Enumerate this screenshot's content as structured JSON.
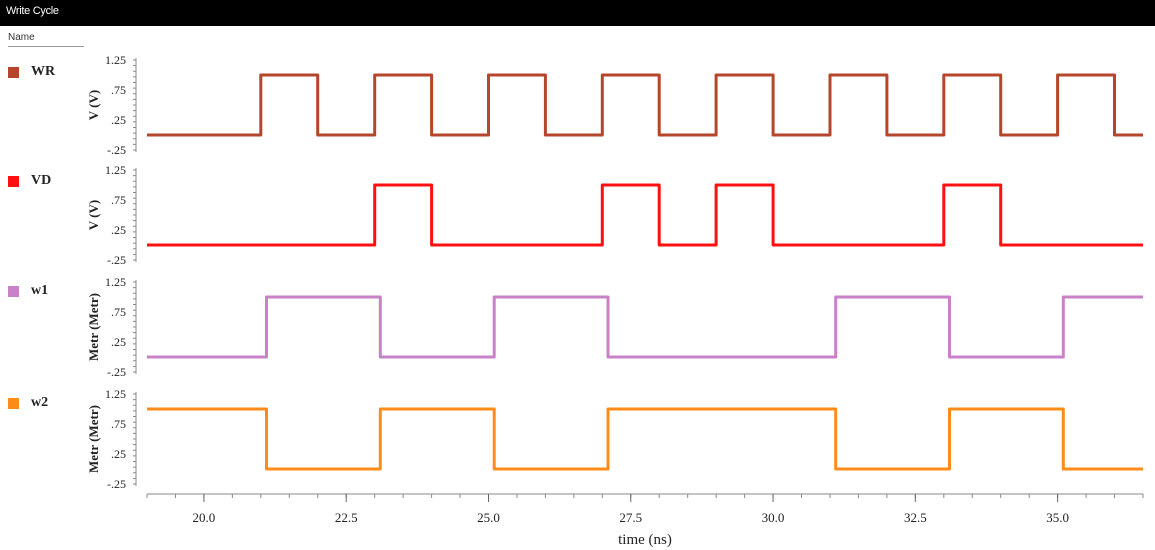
{
  "window": {
    "title": "Write Cycle",
    "name_header": "Name"
  },
  "chart_data": {
    "type": "line",
    "xlabel": "time (ns)",
    "xlim": [
      19.0,
      36.5
    ],
    "x_ticks": [
      "20.0",
      "22.5",
      "25.0",
      "27.5",
      "30.0",
      "32.5",
      "35.0"
    ],
    "y_ticks": [
      "1.25",
      ".75",
      ".25",
      "-.25"
    ],
    "ylim": [
      -0.25,
      1.25
    ],
    "grid": false,
    "legend_placement": "left",
    "panels": [
      {
        "name": "WR",
        "color": "#b5452b",
        "ylabel": "V (V)",
        "points": [
          [
            19.0,
            0
          ],
          [
            21.0,
            0
          ],
          [
            21.0,
            1
          ],
          [
            22.0,
            1
          ],
          [
            22.0,
            0
          ],
          [
            23.0,
            0
          ],
          [
            23.0,
            1
          ],
          [
            24.0,
            1
          ],
          [
            24.0,
            0
          ],
          [
            25.0,
            0
          ],
          [
            25.0,
            1
          ],
          [
            26.0,
            1
          ],
          [
            26.0,
            0
          ],
          [
            27.0,
            0
          ],
          [
            27.0,
            1
          ],
          [
            28.0,
            1
          ],
          [
            28.0,
            0
          ],
          [
            29.0,
            0
          ],
          [
            29.0,
            1
          ],
          [
            30.0,
            1
          ],
          [
            30.0,
            0
          ],
          [
            31.0,
            0
          ],
          [
            31.0,
            1
          ],
          [
            32.0,
            1
          ],
          [
            32.0,
            0
          ],
          [
            33.0,
            0
          ],
          [
            33.0,
            1
          ],
          [
            34.0,
            1
          ],
          [
            34.0,
            0
          ],
          [
            35.0,
            0
          ],
          [
            35.0,
            1
          ],
          [
            36.0,
            1
          ],
          [
            36.0,
            0
          ],
          [
            36.5,
            0
          ]
        ]
      },
      {
        "name": "VD",
        "color": "#ff1010",
        "ylabel": "V (V)",
        "points": [
          [
            19.0,
            0
          ],
          [
            23.0,
            0
          ],
          [
            23.0,
            1
          ],
          [
            24.0,
            1
          ],
          [
            24.0,
            0
          ],
          [
            27.0,
            0
          ],
          [
            27.0,
            1
          ],
          [
            28.0,
            1
          ],
          [
            28.0,
            0
          ],
          [
            29.0,
            0
          ],
          [
            29.0,
            1
          ],
          [
            30.0,
            1
          ],
          [
            30.0,
            0
          ],
          [
            33.0,
            0
          ],
          [
            33.0,
            1
          ],
          [
            34.0,
            1
          ],
          [
            34.0,
            0
          ],
          [
            36.5,
            0
          ]
        ]
      },
      {
        "name": "w1",
        "color": "#c882c8",
        "ylabel": "Metr (Metr)",
        "points": [
          [
            19.0,
            0
          ],
          [
            21.1,
            0
          ],
          [
            21.1,
            1
          ],
          [
            23.1,
            1
          ],
          [
            23.1,
            0
          ],
          [
            25.1,
            0
          ],
          [
            25.1,
            1
          ],
          [
            27.1,
            1
          ],
          [
            27.1,
            0
          ],
          [
            31.1,
            0
          ],
          [
            31.1,
            1
          ],
          [
            33.1,
            1
          ],
          [
            33.1,
            0
          ],
          [
            35.1,
            0
          ],
          [
            35.1,
            1
          ],
          [
            36.5,
            1
          ]
        ]
      },
      {
        "name": "w2",
        "color": "#ff8c1a",
        "ylabel": "Metr (Metr)",
        "points": [
          [
            19.0,
            1
          ],
          [
            21.1,
            1
          ],
          [
            21.1,
            0
          ],
          [
            23.1,
            0
          ],
          [
            23.1,
            1
          ],
          [
            25.1,
            1
          ],
          [
            25.1,
            0
          ],
          [
            27.1,
            0
          ],
          [
            27.1,
            1
          ],
          [
            31.1,
            1
          ],
          [
            31.1,
            0
          ],
          [
            33.1,
            0
          ],
          [
            33.1,
            1
          ],
          [
            35.1,
            1
          ],
          [
            35.1,
            0
          ],
          [
            36.5,
            0
          ]
        ]
      }
    ]
  }
}
